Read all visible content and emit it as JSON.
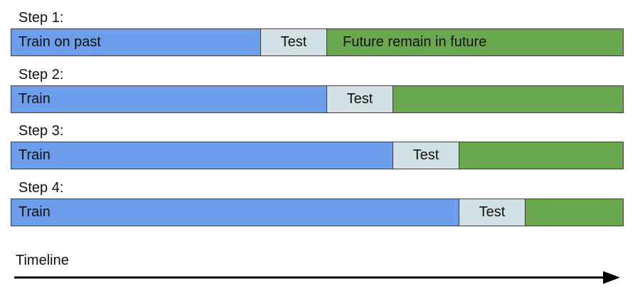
{
  "steps": [
    {
      "label": "Step 1:",
      "train_label": "Train on past",
      "train_fraction": 0.407,
      "test_label": "Test",
      "test_fraction": 0.108,
      "future_label": "Future remain in future"
    },
    {
      "label": "Step 2:",
      "train_label": "Train",
      "train_fraction": 0.515,
      "test_label": "Test",
      "test_fraction": 0.108,
      "future_label": ""
    },
    {
      "label": "Step 3:",
      "train_label": "Train",
      "train_fraction": 0.623,
      "test_label": "Test",
      "test_fraction": 0.108,
      "future_label": ""
    },
    {
      "label": "Step 4:",
      "train_label": "Train",
      "train_fraction": 0.731,
      "test_label": "Test",
      "test_fraction": 0.108,
      "future_label": ""
    }
  ],
  "timeline": {
    "label": "Timeline"
  },
  "colors": {
    "train": "#6d9eeb",
    "test": "#d0e0e3",
    "future": "#6aa84f",
    "border": "#3a3a3a",
    "arrow": "#000000"
  }
}
